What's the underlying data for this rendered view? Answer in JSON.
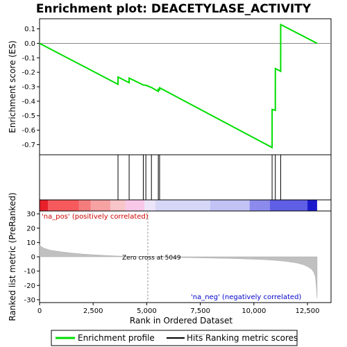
{
  "title": "Enrichment plot: DEACETYLASE_ACTIVITY",
  "top_panel": {
    "ylabel": "Enrichment score (ES)",
    "yticks": [
      "0.1",
      "0.0",
      "-0.1",
      "-0.2",
      "-0.3",
      "-0.4",
      "-0.5",
      "-0.6",
      "-0.7"
    ]
  },
  "bottom_panel": {
    "ylabel": "Ranked list metric (PreRanked)",
    "yticks": [
      "30",
      "20",
      "10",
      "0",
      "-10",
      "-20",
      "-30"
    ],
    "xlabel": "Rank in Ordered Dataset",
    "xticks": [
      "0",
      "2,500",
      "5,000",
      "7,500",
      "10,000",
      "12,500"
    ],
    "pos_label": "'na_pos' (positively correlated)",
    "neg_label": "'na_neg' (negatively correlated)",
    "zero_cross_label": "Zero cross at 5049"
  },
  "legend": {
    "items": [
      {
        "label": "Enrichment profile",
        "color": "#00ee00"
      },
      {
        "label": "Hits",
        "color": "#000000"
      },
      {
        "label": "Ranking metric scores",
        "color": "#c0c0c0"
      }
    ]
  },
  "chart_data": {
    "type": "line",
    "n_genes": 12950,
    "xlim": [
      0,
      13600
    ],
    "es_ylim": [
      -0.77,
      0.17
    ],
    "metric_ylim": [
      -32,
      32
    ],
    "zero_cross": 5049,
    "enrichment_profile": {
      "name": "Enrichment profile",
      "x": [
        0,
        3660,
        3661,
        4180,
        4181,
        4840,
        4960,
        5220,
        5540,
        5541,
        5600,
        5601,
        10850,
        10851,
        11000,
        11001,
        11250,
        11251,
        12950
      ],
      "y": [
        0.0,
        -0.283,
        -0.233,
        -0.272,
        -0.24,
        -0.288,
        -0.29,
        -0.305,
        -0.332,
        -0.317,
        -0.322,
        -0.307,
        -0.72,
        -0.457,
        -0.463,
        -0.174,
        -0.193,
        0.13,
        0.0
      ]
    },
    "hits": [
      3660,
      4180,
      4840,
      4960,
      5220,
      5540,
      5600,
      10850,
      11000,
      11250
    ],
    "ranking_metric": {
      "name": "Ranking metric scores",
      "x": [
        0,
        50,
        200,
        500,
        1000,
        1500,
        2000,
        2500,
        3000,
        3500,
        4000,
        4500,
        5049,
        6000,
        7000,
        8000,
        9000,
        10000,
        10500,
        11000,
        11500,
        12000,
        12300,
        12500,
        12700,
        12800,
        12870,
        12920,
        12950
      ],
      "y": [
        8.5,
        7.5,
        6.0,
        4.6,
        3.5,
        2.6,
        1.9,
        1.4,
        1.0,
        0.6,
        0.3,
        0.1,
        0.0,
        -0.3,
        -0.6,
        -0.9,
        -1.2,
        -1.7,
        -2.0,
        -2.5,
        -3.2,
        -4.3,
        -5.5,
        -6.8,
        -8.8,
        -11.0,
        -14.0,
        -22.0,
        -29.0
      ]
    },
    "color_bar": [
      {
        "from": 0,
        "to": 400,
        "color": "#e8202a"
      },
      {
        "from": 400,
        "to": 1830,
        "color": "#f65a5c"
      },
      {
        "from": 1830,
        "to": 2380,
        "color": "#f47c7d"
      },
      {
        "from": 2380,
        "to": 3300,
        "color": "#f6a1a2"
      },
      {
        "from": 3300,
        "to": 4000,
        "color": "#f8c5c8"
      },
      {
        "from": 4000,
        "to": 4900,
        "color": "#f9c8e8"
      },
      {
        "from": 4900,
        "to": 5400,
        "color": "#ece4f8"
      },
      {
        "from": 5400,
        "to": 7960,
        "color": "#d7d7f7"
      },
      {
        "from": 7960,
        "to": 9800,
        "color": "#c2c2f5"
      },
      {
        "from": 9800,
        "to": 10750,
        "color": "#8b8bee"
      },
      {
        "from": 10750,
        "to": 12500,
        "color": "#5f5fe6"
      },
      {
        "from": 12500,
        "to": 12950,
        "color": "#1a1acc"
      }
    ]
  }
}
